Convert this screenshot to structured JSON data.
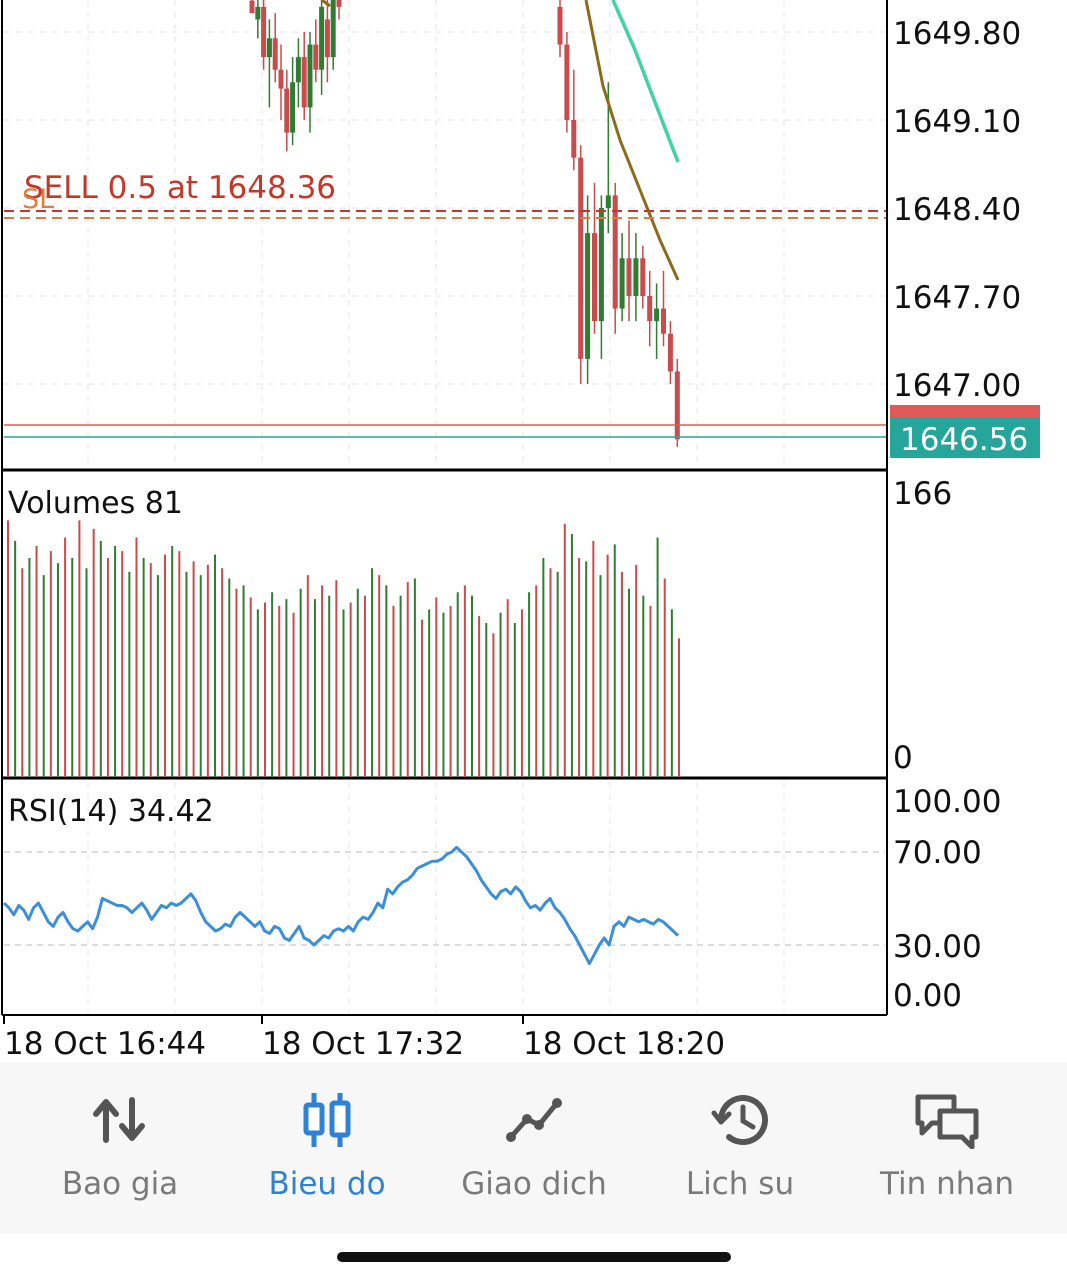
{
  "price_panel": {
    "price_ticks": [
      "1649.80",
      "1649.10",
      "1648.40",
      "1647.70",
      "1647.00"
    ],
    "order_label": "SELL 0.5 at 1648.36",
    "sl_label": "SL",
    "current_price": "1646.56",
    "bid_price_hidden": "1646.64"
  },
  "volume_panel": {
    "title": "Volumes 81",
    "axis_top": "166",
    "axis_bottom": "0"
  },
  "rsi_panel": {
    "title": "RSI(14) 34.42",
    "ticks": [
      "100.00",
      "70.00",
      "30.00",
      "0.00"
    ]
  },
  "time_axis": [
    "18 Oct 16:44",
    "18 Oct 17:32",
    "18 Oct 18:20"
  ],
  "colors": {
    "bull": "#2e7d32",
    "bear": "#c94b4b",
    "ma_fast": "#8b6a1a",
    "ma_slow": "#3fd4a0",
    "rsi": "#3b8fd8",
    "order": "#c0392b",
    "price_badge": "#26a69a",
    "accent": "#2d82d6"
  },
  "nav": {
    "items": [
      {
        "label": "Bao gia",
        "icon": "quotes-arrows-icon"
      },
      {
        "label": "Bieu do",
        "icon": "candlestick-chart-icon",
        "active": true
      },
      {
        "label": "Giao dich",
        "icon": "trade-line-icon"
      },
      {
        "label": "Lich su",
        "icon": "history-clock-icon"
      },
      {
        "label": "Tin nhan",
        "icon": "messages-icon"
      }
    ]
  },
  "chart_data": {
    "type": "candlestick",
    "price_ylim": [
      1646.3,
      1650.2
    ],
    "candles": [
      {
        "o": 1650.05,
        "h": 1650.3,
        "l": 1649.95,
        "c": 1649.95
      },
      {
        "o": 1649.9,
        "h": 1650.2,
        "l": 1649.75,
        "c": 1650.0
      },
      {
        "o": 1650.0,
        "h": 1650.2,
        "l": 1649.5,
        "c": 1649.6
      },
      {
        "o": 1649.6,
        "h": 1649.9,
        "l": 1649.2,
        "c": 1649.75
      },
      {
        "o": 1649.75,
        "h": 1649.95,
        "l": 1649.4,
        "c": 1649.5
      },
      {
        "o": 1649.5,
        "h": 1649.7,
        "l": 1649.1,
        "c": 1649.35
      },
      {
        "o": 1649.35,
        "h": 1649.5,
        "l": 1648.85,
        "c": 1649.0
      },
      {
        "o": 1649.0,
        "h": 1649.6,
        "l": 1648.9,
        "c": 1649.4
      },
      {
        "o": 1649.4,
        "h": 1649.75,
        "l": 1649.2,
        "c": 1649.6
      },
      {
        "o": 1649.6,
        "h": 1649.8,
        "l": 1649.1,
        "c": 1649.2
      },
      {
        "o": 1649.2,
        "h": 1649.8,
        "l": 1649.0,
        "c": 1649.7
      },
      {
        "o": 1649.7,
        "h": 1649.9,
        "l": 1649.4,
        "c": 1649.5
      },
      {
        "o": 1649.5,
        "h": 1650.1,
        "l": 1649.3,
        "c": 1650.0
      },
      {
        "o": 1649.9,
        "h": 1650.2,
        "l": 1649.4,
        "c": 1649.6
      },
      {
        "o": 1649.6,
        "h": 1650.3,
        "l": 1649.5,
        "c": 1650.2
      },
      {
        "o": 1650.3,
        "h": 1650.3,
        "l": 1649.9,
        "c": 1650.0
      },
      {
        "o": 1650.0,
        "h": 1650.2,
        "l": 1649.6,
        "c": 1649.7
      },
      {
        "o": 1649.7,
        "h": 1649.8,
        "l": 1649.0,
        "c": 1649.1
      },
      {
        "o": 1649.1,
        "h": 1649.5,
        "l": 1648.7,
        "c": 1648.8
      },
      {
        "o": 1648.8,
        "h": 1648.9,
        "l": 1647.0,
        "c": 1647.2
      },
      {
        "o": 1647.2,
        "h": 1648.5,
        "l": 1647.0,
        "c": 1648.2
      },
      {
        "o": 1648.2,
        "h": 1648.6,
        "l": 1647.4,
        "c": 1647.5
      },
      {
        "o": 1647.5,
        "h": 1648.5,
        "l": 1647.2,
        "c": 1648.4
      },
      {
        "o": 1648.4,
        "h": 1649.4,
        "l": 1648.2,
        "c": 1648.5
      },
      {
        "o": 1648.5,
        "h": 1648.6,
        "l": 1647.4,
        "c": 1647.6
      },
      {
        "o": 1647.6,
        "h": 1648.2,
        "l": 1647.5,
        "c": 1648.0
      },
      {
        "o": 1648.0,
        "h": 1648.3,
        "l": 1647.5,
        "c": 1647.7
      },
      {
        "o": 1647.7,
        "h": 1648.2,
        "l": 1647.5,
        "c": 1648.0
      },
      {
        "o": 1648.0,
        "h": 1648.1,
        "l": 1647.6,
        "c": 1647.7
      },
      {
        "o": 1647.7,
        "h": 1647.9,
        "l": 1647.3,
        "c": 1647.5
      },
      {
        "o": 1647.5,
        "h": 1647.8,
        "l": 1647.2,
        "c": 1647.6
      },
      {
        "o": 1647.6,
        "h": 1647.9,
        "l": 1647.3,
        "c": 1647.4
      },
      {
        "o": 1647.4,
        "h": 1647.5,
        "l": 1647.0,
        "c": 1647.1
      },
      {
        "o": 1647.1,
        "h": 1647.2,
        "l": 1646.5,
        "c": 1646.56
      }
    ],
    "volumes_visible": [
      150,
      138,
      122,
      128,
      135,
      118,
      132,
      125,
      140,
      128,
      150,
      122,
      145,
      138,
      128,
      135,
      132,
      120,
      140,
      128,
      125,
      118,
      130,
      135,
      132,
      120,
      126,
      118,
      124,
      130,
      122,
      116,
      110,
      112,
      105,
      98,
      102,
      108,
      100,
      104,
      96,
      110,
      118,
      104,
      112,
      106,
      115,
      98,
      102,
      110,
      106,
      122,
      118,
      112,
      100,
      106,
      114,
      116,
      92,
      98,
      105,
      96,
      100,
      108,
      112,
      106,
      94,
      90,
      84,
      96,
      104,
      90,
      98,
      108,
      112,
      128,
      122,
      120,
      148,
      142,
      128,
      126,
      138,
      118,
      130,
      136,
      120,
      110,
      124,
      106,
      100,
      140,
      116,
      98,
      81
    ],
    "rsi": [
      48,
      46,
      43,
      47,
      45,
      41,
      46,
      48,
      44,
      40,
      38,
      42,
      44,
      40,
      37,
      36,
      38,
      40,
      37,
      42,
      50,
      49,
      48,
      47,
      47,
      46,
      44,
      46,
      48,
      45,
      41,
      44,
      47,
      46,
      48,
      47,
      48,
      50,
      52,
      49,
      44,
      40,
      38,
      36,
      37,
      39,
      38,
      42,
      44,
      42,
      40,
      38,
      40,
      36,
      35,
      38,
      37,
      33,
      32,
      35,
      38,
      33,
      32,
      30,
      32,
      34,
      33,
      36,
      37,
      36,
      38,
      36,
      40,
      42,
      41,
      44,
      48,
      46,
      54,
      52,
      55,
      57,
      58,
      60,
      63,
      64,
      65,
      66,
      66,
      67,
      69,
      70,
      72,
      70,
      68,
      65,
      62,
      58,
      55,
      52,
      50,
      53,
      54,
      52,
      55,
      53,
      49,
      46,
      47,
      45,
      48,
      50,
      46,
      44,
      41,
      37,
      34,
      30,
      26,
      22,
      26,
      30,
      33,
      30,
      38,
      40,
      38,
      42,
      41,
      40,
      41,
      40,
      39,
      41,
      40,
      38,
      36,
      34
    ]
  }
}
